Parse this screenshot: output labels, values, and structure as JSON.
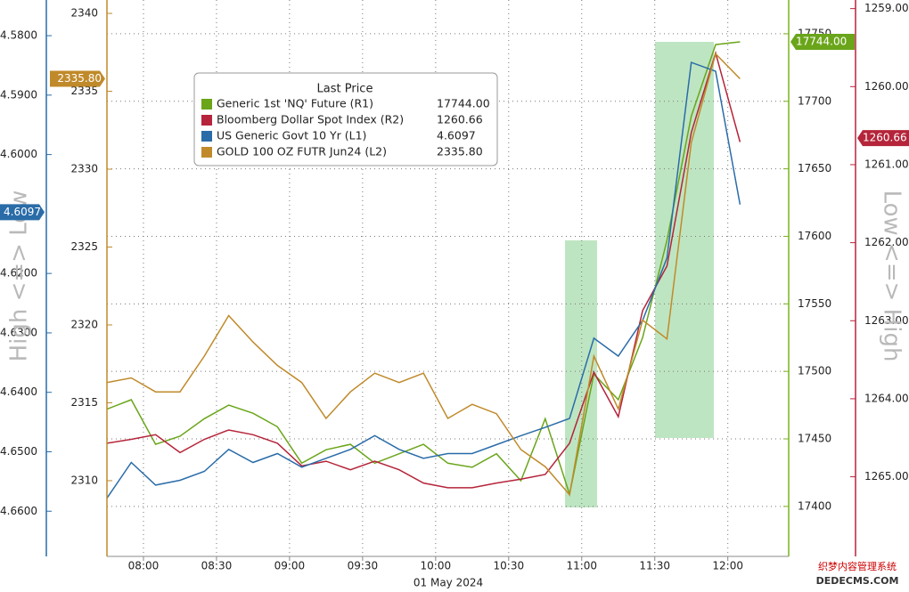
{
  "chart_data": {
    "type": "line",
    "x_label": "01 May 2024",
    "xlim": [
      "07:45",
      "12:25"
    ],
    "xticks": [
      "08:00",
      "08:30",
      "09:00",
      "09:30",
      "10:00",
      "10:30",
      "11:00",
      "11:30",
      "12:00"
    ],
    "x": [
      "07:45",
      "07:55",
      "08:05",
      "08:15",
      "08:25",
      "08:35",
      "08:45",
      "08:55",
      "09:05",
      "09:15",
      "09:25",
      "09:35",
      "09:45",
      "09:55",
      "10:05",
      "10:15",
      "10:25",
      "10:35",
      "10:45",
      "10:55",
      "11:05",
      "11:15",
      "11:25",
      "11:35",
      "11:45",
      "11:55",
      "12:05"
    ],
    "left_axis_label": "High <=> Low",
    "right_axis_label": "Low <=> High",
    "legend_title": "Last Price",
    "grid": true,
    "grid_axis": "R1",
    "axes": {
      "L1": {
        "color": "#2a6ca8",
        "inverted": true,
        "ylim": [
          4.574,
          4.6676
        ],
        "yticks": [
          {
            "value": 4.58,
            "label": "4.5800"
          },
          {
            "value": 4.59,
            "label": "4.5900"
          },
          {
            "value": 4.6,
            "label": "4.6000"
          },
          {
            "value": 4.62,
            "label": "4.6200"
          },
          {
            "value": 4.63,
            "label": "4.6300"
          },
          {
            "value": 4.64,
            "label": "4.6400"
          },
          {
            "value": 4.65,
            "label": "4.6500"
          },
          {
            "value": 4.66,
            "label": "4.6600"
          }
        ]
      },
      "L2": {
        "color": "#c08a2a",
        "inverted": false,
        "ylim": [
          2305.14,
          2340.86
        ],
        "yticks": [
          2310,
          2315,
          2320,
          2325,
          2330,
          2335,
          2340
        ]
      },
      "R1": {
        "color": "#7ab31e",
        "inverted": false,
        "ylim": [
          17363,
          17775
        ],
        "yticks": [
          17400,
          17450,
          17500,
          17550,
          17600,
          17650,
          17700,
          17750
        ]
      },
      "R2": {
        "color": "#b5243a",
        "inverted": true,
        "ylim": [
          1258.89,
          1266.02
        ],
        "yticks": [
          {
            "value": 1259,
            "label": "1259.00"
          },
          {
            "value": 1260,
            "label": "1260.00"
          },
          {
            "value": 1261,
            "label": "1261.00"
          },
          {
            "value": 1262,
            "label": "1262.00"
          },
          {
            "value": 1263,
            "label": "1263.00"
          },
          {
            "value": 1264,
            "label": "1264.00"
          },
          {
            "value": 1265,
            "label": "1265.00"
          }
        ]
      }
    },
    "series": [
      {
        "name": "Generic 1st 'NQ' Future  (R1)",
        "axis": "R1",
        "color": "#6aa51a",
        "last_value": {
          "value": 17744,
          "label": "17744.00"
        },
        "values": [
          17472,
          17479,
          17446,
          17452,
          17465,
          17475,
          17469,
          17459,
          17432,
          17442,
          17446,
          17432,
          17439,
          17446,
          17432,
          17429,
          17439,
          17419,
          17465,
          17409,
          17498,
          17479,
          17525,
          17597,
          17689,
          17742,
          17744
        ]
      },
      {
        "name": "Bloomberg Dollar Spot Index  (R2)",
        "axis": "R2",
        "color": "#b5243a",
        "last_value": {
          "value": 1260.66,
          "label": "1260.66"
        },
        "values": [
          1264.57,
          1264.52,
          1264.46,
          1264.69,
          1264.52,
          1264.4,
          1264.46,
          1264.57,
          1264.86,
          1264.8,
          1264.91,
          1264.8,
          1264.91,
          1265.08,
          1265.14,
          1265.14,
          1265.08,
          1265.03,
          1264.97,
          1264.57,
          1263.66,
          1264.23,
          1262.87,
          1262.3,
          1260.59,
          1259.57,
          1260.71
        ]
      },
      {
        "name": "US Generic Govt 10 Yr  (L1)",
        "axis": "L1",
        "color": "#2a6ca8",
        "last_value": {
          "value": 4.6097,
          "label": "4.6097"
        },
        "values": [
          4.6578,
          4.6518,
          4.6556,
          4.6548,
          4.6533,
          4.6496,
          4.6518,
          4.6503,
          4.6526,
          4.6511,
          4.6496,
          4.6473,
          4.6496,
          4.6511,
          4.6503,
          4.6503,
          4.6488,
          4.6473,
          4.6459,
          4.6444,
          4.6309,
          4.6339,
          4.6279,
          4.6174,
          4.5845,
          4.586,
          4.6084
        ]
      },
      {
        "name": "GOLD 100 OZ FUTR Jun24  (L2)",
        "axis": "L2",
        "color": "#c08a2a",
        "last_value": {
          "value": 2335.8,
          "label": "2335.80"
        },
        "values": [
          2316.3,
          2316.6,
          2315.7,
          2315.7,
          2318.0,
          2320.6,
          2318.9,
          2317.4,
          2316.3,
          2314.0,
          2315.7,
          2316.9,
          2316.3,
          2316.9,
          2314.0,
          2314.9,
          2314.3,
          2312.0,
          2310.9,
          2309.1,
          2318.0,
          2314.6,
          2320.3,
          2319.1,
          2331.7,
          2337.4,
          2335.8
        ]
      }
    ],
    "watermark": [
      "织梦内容管理系统",
      "DEDECMS.COM"
    ]
  }
}
